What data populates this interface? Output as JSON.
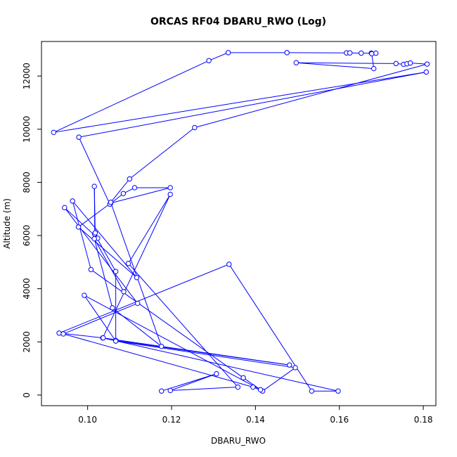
{
  "chart_data": {
    "type": "line",
    "title": "ORCAS RF04 DBARU_RWO (Log)",
    "xlabel": "DBARU_RWO",
    "ylabel": "Altitude (m)",
    "xlim": [
      0.089,
      0.183
    ],
    "ylim": [
      -400,
      13300
    ],
    "xticks": [
      0.1,
      0.12,
      0.14,
      0.16,
      0.18
    ],
    "xtick_labels": [
      "0.10",
      "0.12",
      "0.14",
      "0.16",
      "0.18"
    ],
    "yticks": [
      0,
      2000,
      4000,
      6000,
      8000,
      10000,
      12000
    ],
    "ytick_labels": [
      "0",
      "2000",
      "4000",
      "6000",
      "8000",
      "10000",
      "12000"
    ],
    "grid": false,
    "legend": "none",
    "line_color": "#0000ff",
    "marker": "open-circle",
    "series": [
      {
        "points": [
          [
            0.1176,
            150
          ],
          [
            0.1307,
            800
          ],
          [
            0.1197,
            170
          ],
          [
            0.1358,
            300
          ],
          [
            0.1097,
            4950
          ],
          [
            0.1197,
            7550
          ],
          [
            0.1036,
            2150
          ],
          [
            0.1597,
            150
          ],
          [
            0.1534,
            150
          ],
          [
            0.1337,
            4920
          ],
          [
            0.0932,
            2330
          ],
          [
            0.1037,
            2150
          ],
          [
            0.1481,
            1130
          ],
          [
            0.1067,
            2050
          ],
          [
            0.1067,
            4650
          ],
          [
            0.1017,
            6050
          ],
          [
            0.1016,
            7850
          ],
          [
            0.1018,
            6100
          ],
          [
            0.1024,
            5900
          ],
          [
            0.0945,
            7050
          ],
          [
            0.1119,
            3450
          ],
          [
            0.0942,
            2300
          ],
          [
            0.1394,
            300
          ],
          [
            0.1417,
            150
          ],
          [
            0.1495,
            1030
          ],
          [
            0.1067,
            2030
          ],
          [
            0.0992,
            3750
          ],
          [
            0.1412,
            200
          ],
          [
            0.1371,
            650
          ],
          [
            0.1008,
            4720
          ],
          [
            0.0964,
            7300
          ],
          [
            0.1117,
            4420
          ],
          [
            0.0978,
            6320
          ],
          [
            0.1055,
            7220
          ],
          [
            0.1197,
            7800
          ],
          [
            0.1112,
            7800
          ],
          [
            0.1085,
            7580
          ],
          [
            0.1053,
            7180
          ],
          [
            0.0979,
            9700
          ],
          [
            0.1807,
            12150
          ],
          [
            0.0919,
            9880
          ],
          [
            0.1289,
            12580
          ],
          [
            0.1335,
            12880
          ],
          [
            0.1475,
            12880
          ],
          [
            0.1617,
            12870
          ],
          [
            0.1625,
            12870
          ],
          [
            0.1652,
            12860
          ],
          [
            0.1676,
            12860
          ],
          [
            0.1687,
            12860
          ],
          [
            0.1677,
            12840
          ],
          [
            0.1682,
            12280
          ],
          [
            0.1497,
            12500
          ],
          [
            0.1735,
            12470
          ],
          [
            0.1753,
            12440
          ],
          [
            0.1761,
            12460
          ],
          [
            0.1769,
            12490
          ],
          [
            0.1809,
            12450
          ],
          [
            0.1255,
            10060
          ],
          [
            0.11,
            8130
          ],
          [
            0.1055,
            7250
          ],
          [
            0.1176,
            1830
          ],
          [
            0.1059,
            3280
          ],
          [
            0.1016,
            5880
          ],
          [
            0.1086,
            3890
          ]
        ]
      }
    ]
  }
}
